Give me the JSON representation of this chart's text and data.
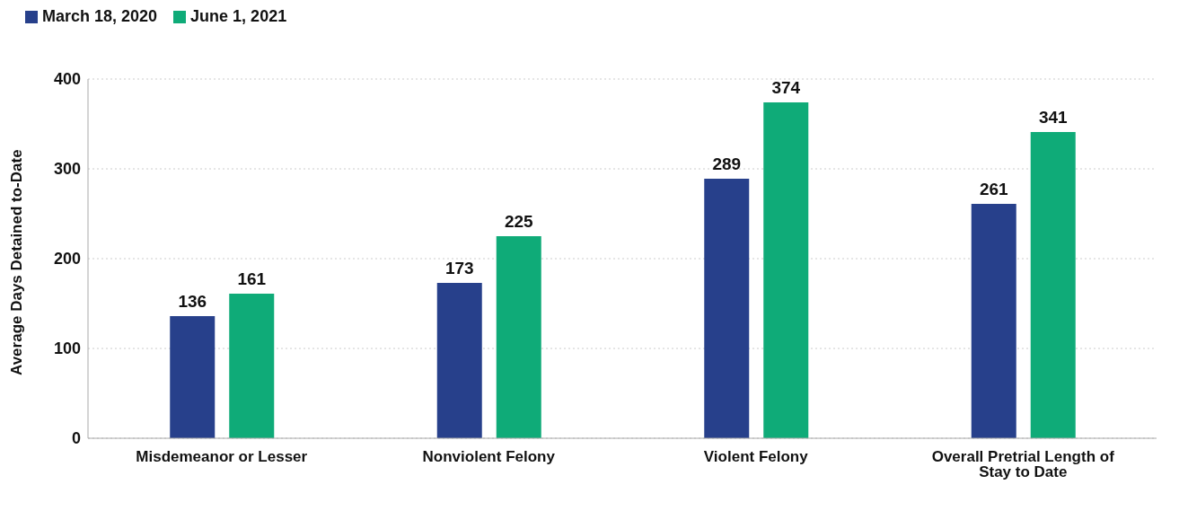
{
  "chart_data": {
    "type": "bar",
    "ylabel": "Average Days Detained to-Date",
    "categories": [
      "Misdemeanor or Lesser",
      "Nonviolent Felony",
      "Violent Felony",
      "Overall Pretrial Length of Stay to Date"
    ],
    "series": [
      {
        "name": "March 18, 2020",
        "color": "#27408b",
        "values": [
          136,
          173,
          289,
          261
        ]
      },
      {
        "name": "June 1, 2021",
        "color": "#0fab78",
        "values": [
          161,
          225,
          374,
          341
        ]
      }
    ],
    "ylim": [
      0,
      400
    ],
    "yticks": [
      0,
      100,
      200,
      300,
      400
    ],
    "grid": "y",
    "legend": "top left",
    "data_labels": true
  }
}
